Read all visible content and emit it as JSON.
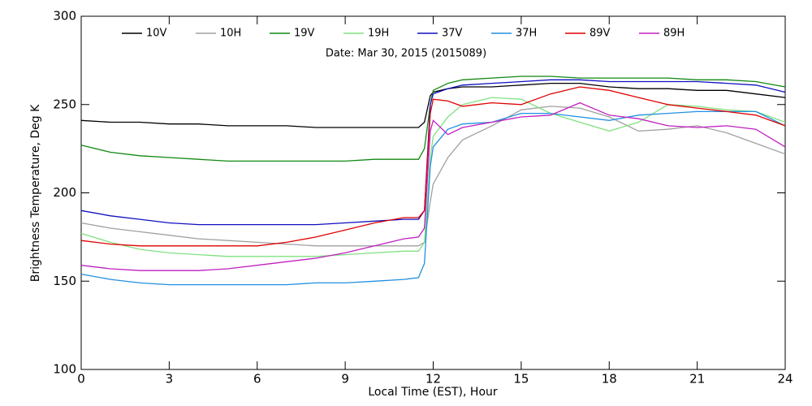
{
  "chart_data": {
    "type": "line",
    "subtitle": "Date: Mar 30, 2015 (2015089)",
    "x_label": "Local Time (EST), Hour",
    "y_label": "Brightness Temperature, Deg K",
    "xlim": [
      0,
      24
    ],
    "xticks": [
      0,
      3,
      6,
      9,
      12,
      15,
      18,
      21,
      24
    ],
    "ylim": [
      100,
      300
    ],
    "yticks": [
      100,
      150,
      200,
      250,
      300
    ],
    "x": [
      0,
      1,
      2,
      3,
      4,
      5,
      6,
      7,
      8,
      9,
      10,
      11,
      11.5,
      11.7,
      11.9,
      12,
      12.5,
      13,
      14,
      15,
      16,
      17,
      18,
      19,
      20,
      21,
      22,
      23,
      24
    ],
    "series": [
      {
        "name": "10V",
        "color": "#000000",
        "values": [
          241,
          240,
          240,
          239,
          239,
          238,
          238,
          238,
          237,
          237,
          237,
          237,
          237,
          240,
          255,
          257,
          259,
          260,
          260,
          261,
          262,
          262,
          260,
          259,
          259,
          258,
          258,
          256,
          254
        ]
      },
      {
        "name": "10H",
        "color": "#a0a0a0",
        "values": [
          183,
          180,
          178,
          176,
          174,
          173,
          172,
          171,
          170,
          170,
          170,
          170,
          170,
          172,
          195,
          205,
          220,
          230,
          238,
          247,
          249,
          248,
          243,
          235,
          236,
          238,
          234,
          228,
          222
        ]
      },
      {
        "name": "19V",
        "color": "#118811",
        "values": [
          227,
          223,
          221,
          220,
          219,
          218,
          218,
          218,
          218,
          218,
          219,
          219,
          219,
          225,
          250,
          258,
          262,
          264,
          265,
          266,
          266,
          265,
          265,
          265,
          265,
          264,
          264,
          263,
          260
        ]
      },
      {
        "name": "19H",
        "color": "#80e080",
        "values": [
          177,
          172,
          168,
          166,
          165,
          164,
          164,
          164,
          164,
          165,
          166,
          167,
          167,
          172,
          220,
          232,
          243,
          250,
          254,
          253,
          245,
          240,
          235,
          240,
          250,
          249,
          247,
          246,
          240
        ]
      },
      {
        "name": "37V",
        "color": "#1010c0",
        "values": [
          190,
          187,
          185,
          183,
          182,
          182,
          182,
          182,
          182,
          183,
          184,
          185,
          185,
          190,
          250,
          256,
          259,
          261,
          262,
          263,
          264,
          264,
          263,
          263,
          263,
          263,
          262,
          261,
          257
        ]
      },
      {
        "name": "37H",
        "color": "#2090e0",
        "values": [
          154,
          151,
          149,
          148,
          148,
          148,
          148,
          148,
          149,
          149,
          150,
          151,
          152,
          160,
          215,
          226,
          236,
          239,
          240,
          245,
          245,
          243,
          241,
          244,
          245,
          246,
          246,
          246,
          238
        ]
      },
      {
        "name": "89V",
        "color": "#e00000",
        "values": [
          173,
          171,
          170,
          170,
          170,
          170,
          170,
          172,
          175,
          179,
          183,
          186,
          186,
          190,
          245,
          253,
          252,
          249,
          251,
          250,
          256,
          260,
          258,
          254,
          250,
          248,
          246,
          244,
          238
        ]
      },
      {
        "name": "89H",
        "color": "#c020c0",
        "values": [
          159,
          157,
          156,
          156,
          156,
          157,
          159,
          161,
          163,
          166,
          170,
          174,
          175,
          180,
          235,
          241,
          233,
          237,
          240,
          243,
          244,
          251,
          244,
          242,
          238,
          237,
          238,
          236,
          226
        ]
      }
    ]
  }
}
